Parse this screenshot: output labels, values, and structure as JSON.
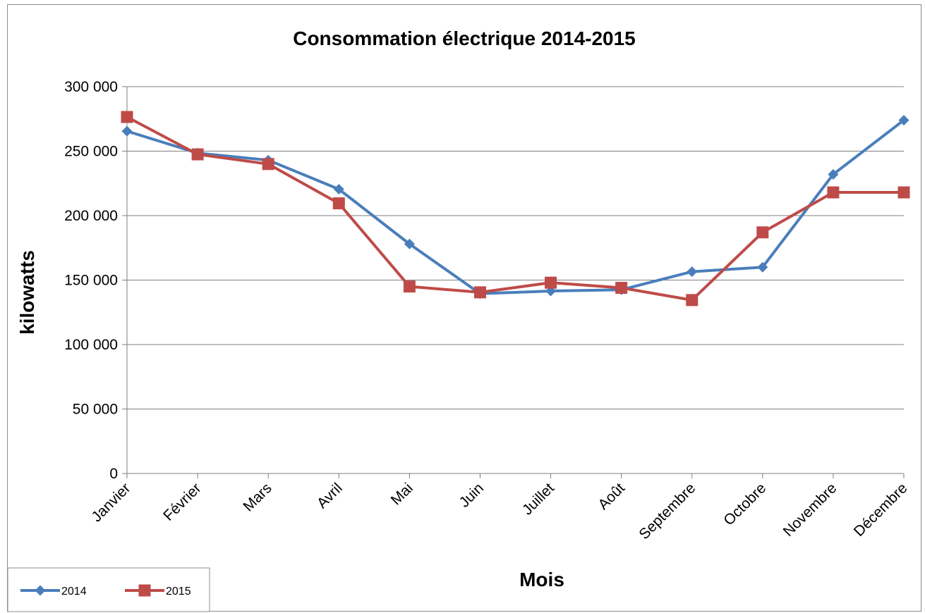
{
  "chart_data": {
    "type": "line",
    "title": "Consommation électrique 2014-2015",
    "xlabel": "Mois",
    "ylabel": "kilowatts",
    "categories": [
      "Janvier",
      "Février",
      "Mars",
      "Avril",
      "Mai",
      "Juin",
      "Juillet",
      "Août",
      "Septembre",
      "Octobre",
      "Novembre",
      "Décembre"
    ],
    "ylim": [
      0,
      300000
    ],
    "yticks": [
      0,
      50000,
      100000,
      150000,
      200000,
      250000,
      300000
    ],
    "ytick_labels": [
      "0",
      "50 000",
      "100 000",
      "150 000",
      "200 000",
      "250 000",
      "300 000"
    ],
    "grid": true,
    "legend_position": "bottom-left",
    "series": [
      {
        "name": "2014",
        "color": "#4a7ebb",
        "marker": "diamond",
        "values": [
          265500,
          248500,
          243000,
          220500,
          178000,
          139500,
          141500,
          142500,
          156500,
          160000,
          232000,
          274000
        ]
      },
      {
        "name": "2015",
        "color": "#be4b48",
        "marker": "square",
        "values": [
          276500,
          247500,
          240000,
          209500,
          145000,
          140500,
          148000,
          144000,
          134500,
          187000,
          218000,
          218000
        ]
      }
    ]
  }
}
